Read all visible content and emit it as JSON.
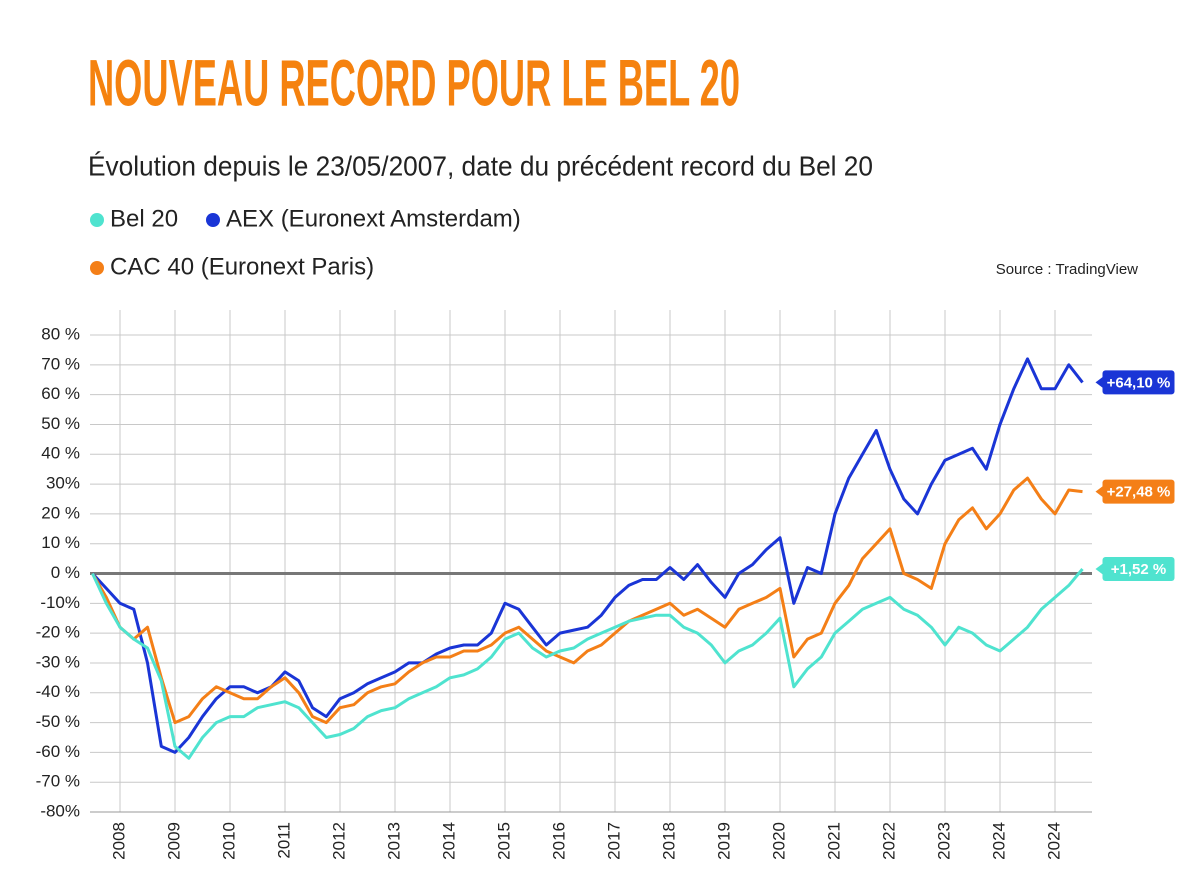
{
  "chart_data": {
    "type": "line",
    "title": "NOUVEAU RECORD POUR LE BEL 20",
    "subtitle": "Évolution depuis le 23/05/2007, date du précédent record du Bel 20",
    "source": "Source : TradingView",
    "categories": [
      null,
      null,
      "2008",
      null,
      null,
      null,
      "2009",
      null,
      null,
      null,
      "2010",
      null,
      null,
      null,
      "2011",
      null,
      null,
      null,
      "2012",
      null,
      null,
      null,
      "2013",
      null,
      null,
      null,
      "2014",
      null,
      null,
      null,
      "2015",
      null,
      null,
      null,
      "2016",
      null,
      null,
      null,
      "2017",
      null,
      null,
      null,
      "2018",
      null,
      null,
      null,
      "2019",
      null,
      null,
      null,
      "2020",
      null,
      null,
      null,
      "2021",
      null,
      null,
      null,
      "2022",
      null,
      null,
      null,
      "2023",
      null,
      null,
      null,
      "2024",
      null,
      null,
      null,
      "2024",
      null,
      null
    ],
    "ylim": [
      -80,
      80
    ],
    "yticks": [
      {
        "value": 80,
        "label": "80 %"
      },
      {
        "value": 70,
        "label": "70 %"
      },
      {
        "value": 60,
        "label": "60 %"
      },
      {
        "value": 50,
        "label": "50 %"
      },
      {
        "value": 40,
        "label": "40 %"
      },
      {
        "value": 30,
        "label": "30%"
      },
      {
        "value": 20,
        "label": "20 %"
      },
      {
        "value": 10,
        "label": "10 %"
      },
      {
        "value": 0,
        "label": "0 %"
      },
      {
        "value": -10,
        "label": "-10%"
      },
      {
        "value": -20,
        "label": "-20 %"
      },
      {
        "value": -30,
        "label": "-30 %"
      },
      {
        "value": -40,
        "label": "-40 %"
      },
      {
        "value": -50,
        "label": "-50 %"
      },
      {
        "value": -60,
        "label": "-60 %"
      },
      {
        "value": -70,
        "label": "-70 %"
      },
      {
        "value": -80,
        "label": "-80%"
      }
    ],
    "grid": true,
    "series": [
      {
        "name": "Bel 20",
        "color": "#4fe3cf",
        "end_label": "+1,52 %",
        "values": [
          0,
          -10,
          -18,
          -22,
          -25,
          -36,
          -58,
          -62,
          -55,
          -50,
          -48,
          -48,
          -45,
          -44,
          -43,
          -45,
          -50,
          -55,
          -54,
          -52,
          -48,
          -46,
          -45,
          -42,
          -40,
          -38,
          -35,
          -34,
          -32,
          -28,
          -22,
          -20,
          -25,
          -28,
          -26,
          -25,
          -22,
          -20,
          -18,
          -16,
          -15,
          -14,
          -14,
          -18,
          -20,
          -24,
          -30,
          -26,
          -24,
          -20,
          -15,
          -38,
          -32,
          -28,
          -20,
          -16,
          -12,
          -10,
          -8,
          -12,
          -14,
          -18,
          -24,
          -18,
          -20,
          -24,
          -26,
          -22,
          -18,
          -12,
          -8,
          -4,
          1.52
        ]
      },
      {
        "name": "AEX (Euronext Amsterdam)",
        "color": "#1a35d6",
        "end_label": "+64,10 %",
        "values": [
          0,
          -5,
          -10,
          -12,
          -30,
          -58,
          -60,
          -55,
          -48,
          -42,
          -38,
          -38,
          -40,
          -38,
          -33,
          -36,
          -45,
          -48,
          -42,
          -40,
          -37,
          -35,
          -33,
          -30,
          -30,
          -27,
          -25,
          -24,
          -24,
          -20,
          -10,
          -12,
          -18,
          -24,
          -20,
          -19,
          -18,
          -14,
          -8,
          -4,
          -2,
          -2,
          2,
          -2,
          3,
          -3,
          -8,
          0,
          3,
          8,
          12,
          -10,
          2,
          0,
          20,
          32,
          40,
          48,
          35,
          25,
          20,
          30,
          38,
          40,
          42,
          35,
          50,
          62,
          72,
          62,
          62,
          70,
          64.1
        ]
      },
      {
        "name": "CAC 40 (Euronext Paris)",
        "color": "#f47f17",
        "end_label": "+27,48 %",
        "values": [
          0,
          -8,
          -18,
          -22,
          -18,
          -35,
          -50,
          -48,
          -42,
          -38,
          -40,
          -42,
          -42,
          -38,
          -35,
          -40,
          -48,
          -50,
          -45,
          -44,
          -40,
          -38,
          -37,
          -33,
          -30,
          -28,
          -28,
          -26,
          -26,
          -24,
          -20,
          -18,
          -22,
          -26,
          -28,
          -30,
          -26,
          -24,
          -20,
          -16,
          -14,
          -12,
          -10,
          -14,
          -12,
          -15,
          -18,
          -12,
          -10,
          -8,
          -5,
          -28,
          -22,
          -20,
          -10,
          -4,
          5,
          10,
          15,
          0,
          -2,
          -5,
          10,
          18,
          22,
          15,
          20,
          28,
          32,
          25,
          20,
          28,
          27.48
        ]
      }
    ]
  }
}
